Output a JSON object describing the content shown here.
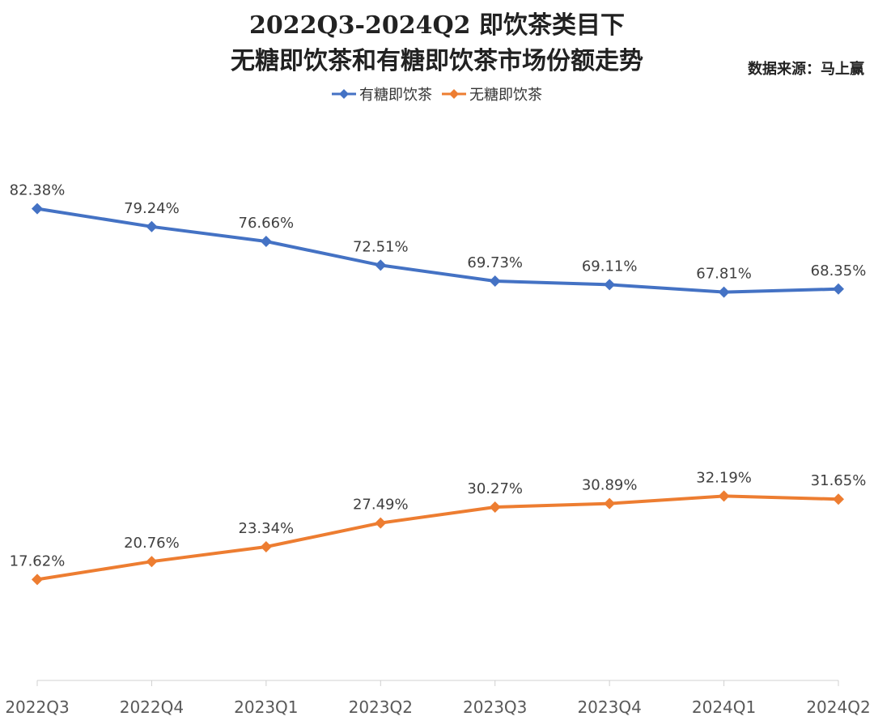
{
  "chart": {
    "title_line1": "2022Q3-2024Q2 即饮茶类目下",
    "title_line2": "无糖即饮茶和有糖即饮茶市场份额走势",
    "source": "数据来源：马上赢"
  },
  "chart_data": {
    "type": "line",
    "title": "2022Q3-2024Q2 即饮茶类目下无糖即饮茶和有糖即饮茶市场份额走势",
    "xlabel": "",
    "ylabel": "",
    "categories": [
      "2022Q3",
      "2022Q4",
      "2023Q1",
      "2023Q2",
      "2023Q3",
      "2023Q4",
      "2024Q1",
      "2024Q2"
    ],
    "series": [
      {
        "name": "有糖即饮茶",
        "color": "#4472C4",
        "values": [
          82.38,
          79.24,
          76.66,
          72.51,
          69.73,
          69.11,
          67.81,
          68.35
        ],
        "labels": [
          "82.38%",
          "79.24%",
          "76.66%",
          "72.51%",
          "69.73%",
          "69.11%",
          "67.81%",
          "68.35%"
        ]
      },
      {
        "name": "无糖即饮茶",
        "color": "#ED7D31",
        "values": [
          17.62,
          20.76,
          23.34,
          27.49,
          30.27,
          30.89,
          32.19,
          31.65
        ],
        "labels": [
          "17.62%",
          "20.76%",
          "23.34%",
          "27.49%",
          "30.27%",
          "30.89%",
          "32.19%",
          "31.65%"
        ]
      }
    ],
    "ylim": [
      0,
      100
    ],
    "grid": false,
    "legend_position": "top"
  }
}
